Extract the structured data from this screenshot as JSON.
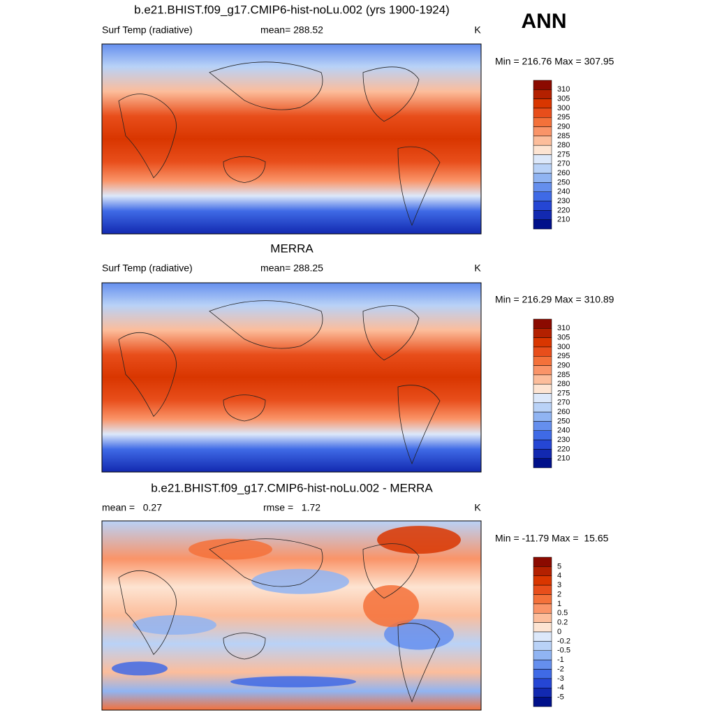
{
  "annotation": "ANN",
  "panels": [
    {
      "title": "b.e21.BHIST.f09_g17.CMIP6-hist-noLu.002 (yrs 1900-1924)",
      "left": "Surf Temp (radiative)",
      "center": "mean= 288.52",
      "right": "K",
      "minmax": "Min = 216.76 Max = 307.95",
      "colorbar": {
        "labels": [
          "310",
          "305",
          "300",
          "295",
          "290",
          "285",
          "280",
          "275",
          "270",
          "260",
          "250",
          "240",
          "230",
          "220",
          "210"
        ],
        "colors": [
          "#8b0a00",
          "#b32000",
          "#d93600",
          "#e84e1b",
          "#f4713a",
          "#fa9468",
          "#fcbd9b",
          "#fde4d2",
          "#dce8fa",
          "#b9d2f7",
          "#90b4f2",
          "#658fee",
          "#3f6ae6",
          "#2546d4",
          "#1229b0",
          "#00108a"
        ]
      }
    },
    {
      "title": "MERRA",
      "left": "Surf Temp (radiative)",
      "center": "mean= 288.25",
      "right": "K",
      "minmax": "Min = 216.29 Max = 310.89",
      "colorbar": {
        "labels": [
          "310",
          "305",
          "300",
          "295",
          "290",
          "285",
          "280",
          "275",
          "270",
          "260",
          "250",
          "240",
          "230",
          "220",
          "210"
        ],
        "colors": [
          "#8b0a00",
          "#b32000",
          "#d93600",
          "#e84e1b",
          "#f4713a",
          "#fa9468",
          "#fcbd9b",
          "#fde4d2",
          "#dce8fa",
          "#b9d2f7",
          "#90b4f2",
          "#658fee",
          "#3f6ae6",
          "#2546d4",
          "#1229b0",
          "#00108a"
        ]
      }
    },
    {
      "title": "b.e21.BHIST.f09_g17.CMIP6-hist-noLu.002 - MERRA",
      "left": "mean =   0.27",
      "center": "rmse =   1.72",
      "right": "K",
      "minmax": "Min = -11.79 Max =  15.65",
      "colorbar": {
        "labels": [
          "5",
          "4",
          "3",
          "2",
          "1",
          "0.5",
          "0.2",
          "0",
          "-0.2",
          "-0.5",
          "-1",
          "-2",
          "-3",
          "-4",
          "-5"
        ],
        "colors": [
          "#8b0a00",
          "#b32000",
          "#d93600",
          "#e84e1b",
          "#f4713a",
          "#fa9468",
          "#fcbd9b",
          "#fde4d2",
          "#dce8fa",
          "#b9d2f7",
          "#90b4f2",
          "#658fee",
          "#3f6ae6",
          "#2546d4",
          "#1229b0",
          "#00108a"
        ]
      }
    }
  ]
}
